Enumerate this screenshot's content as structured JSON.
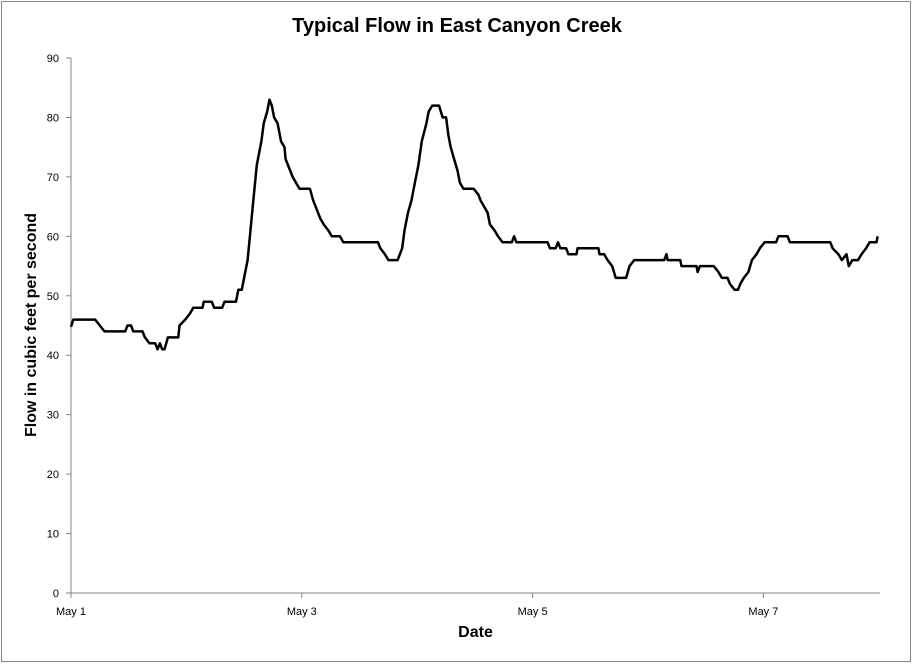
{
  "chart_data": {
    "type": "line",
    "title": "Typical Flow in East Canyon Creek",
    "xlabel": "Date",
    "ylabel": "Flow in cubic feet per second",
    "ylim": [
      0,
      90
    ],
    "yticks": [
      0,
      10,
      20,
      30,
      40,
      50,
      60,
      70,
      80,
      90
    ],
    "xlim_days": [
      0,
      7.01
    ],
    "xticks": [
      {
        "day": 0,
        "label": "May 1"
      },
      {
        "day": 2,
        "label": "May 3"
      },
      {
        "day": 4,
        "label": "May 5"
      },
      {
        "day": 6,
        "label": "May 7"
      }
    ],
    "grid": false,
    "legend": "none",
    "line_color": "#000000",
    "x_unit": "days since May 1",
    "series": [
      {
        "name": "Flow",
        "points": [
          [
            0,
            44.8
          ],
          [
            0.02,
            46
          ],
          [
            0.21,
            46
          ],
          [
            0.25,
            45
          ],
          [
            0.29,
            44
          ],
          [
            0.47,
            44
          ],
          [
            0.49,
            45
          ],
          [
            0.52,
            45
          ],
          [
            0.54,
            44
          ],
          [
            0.62,
            44
          ],
          [
            0.64,
            43
          ],
          [
            0.68,
            42
          ],
          [
            0.73,
            42
          ],
          [
            0.75,
            41
          ],
          [
            0.77,
            42
          ],
          [
            0.79,
            41
          ],
          [
            0.81,
            41
          ],
          [
            0.84,
            43
          ],
          [
            0.93,
            43
          ],
          [
            0.94,
            45
          ],
          [
            0.99,
            46
          ],
          [
            1.03,
            47
          ],
          [
            1.06,
            48
          ],
          [
            1.14,
            48
          ],
          [
            1.15,
            49
          ],
          [
            1.22,
            49
          ],
          [
            1.24,
            48
          ],
          [
            1.31,
            48
          ],
          [
            1.33,
            49
          ],
          [
            1.43,
            49
          ],
          [
            1.45,
            51
          ],
          [
            1.48,
            51
          ],
          [
            1.5,
            53
          ],
          [
            1.53,
            56
          ],
          [
            1.55,
            60
          ],
          [
            1.58,
            66
          ],
          [
            1.61,
            72
          ],
          [
            1.65,
            76
          ],
          [
            1.67,
            79
          ],
          [
            1.7,
            81
          ],
          [
            1.72,
            83
          ],
          [
            1.74,
            82
          ],
          [
            1.76,
            80
          ],
          [
            1.79,
            79
          ],
          [
            1.82,
            76
          ],
          [
            1.85,
            75
          ],
          [
            1.86,
            73
          ],
          [
            1.9,
            71
          ],
          [
            1.92,
            70
          ],
          [
            1.95,
            69
          ],
          [
            1.98,
            68
          ],
          [
            2.07,
            68
          ],
          [
            2.1,
            66
          ],
          [
            2.12,
            65
          ],
          [
            2.16,
            63
          ],
          [
            2.19,
            62
          ],
          [
            2.23,
            61
          ],
          [
            2.26,
            60
          ],
          [
            2.33,
            60
          ],
          [
            2.36,
            59
          ],
          [
            2.66,
            59
          ],
          [
            2.68,
            58
          ],
          [
            2.72,
            57
          ],
          [
            2.75,
            56
          ],
          [
            2.83,
            56
          ],
          [
            2.87,
            58
          ],
          [
            2.89,
            61
          ],
          [
            2.92,
            64
          ],
          [
            2.95,
            66
          ],
          [
            2.97,
            68
          ],
          [
            3.01,
            72
          ],
          [
            3.04,
            76
          ],
          [
            3.08,
            79
          ],
          [
            3.1,
            81
          ],
          [
            3.13,
            82
          ],
          [
            3.19,
            82
          ],
          [
            3.22,
            80
          ],
          [
            3.25,
            80
          ],
          [
            3.27,
            77
          ],
          [
            3.29,
            75
          ],
          [
            3.32,
            73
          ],
          [
            3.35,
            71
          ],
          [
            3.37,
            69
          ],
          [
            3.4,
            68
          ],
          [
            3.49,
            68
          ],
          [
            3.53,
            67
          ],
          [
            3.55,
            66
          ],
          [
            3.58,
            65
          ],
          [
            3.61,
            64
          ],
          [
            3.63,
            62
          ],
          [
            3.67,
            61
          ],
          [
            3.7,
            60
          ],
          [
            3.74,
            59
          ],
          [
            3.82,
            59
          ],
          [
            3.84,
            60
          ],
          [
            3.86,
            59
          ],
          [
            4.13,
            59
          ],
          [
            4.15,
            58
          ],
          [
            4.2,
            58
          ],
          [
            4.22,
            59
          ],
          [
            4.24,
            58
          ],
          [
            4.29,
            58
          ],
          [
            4.31,
            57
          ],
          [
            4.38,
            57
          ],
          [
            4.39,
            58
          ],
          [
            4.57,
            58
          ],
          [
            4.58,
            57
          ],
          [
            4.62,
            57
          ],
          [
            4.65,
            56
          ],
          [
            4.69,
            55
          ],
          [
            4.72,
            53
          ],
          [
            4.81,
            53
          ],
          [
            4.84,
            55
          ],
          [
            4.88,
            56
          ],
          [
            5.14,
            56
          ],
          [
            5.16,
            57
          ],
          [
            5.17,
            56
          ],
          [
            5.28,
            56
          ],
          [
            5.29,
            55
          ],
          [
            5.42,
            55
          ],
          [
            5.43,
            54
          ],
          [
            5.45,
            55
          ],
          [
            5.57,
            55
          ],
          [
            5.61,
            54
          ],
          [
            5.64,
            53
          ],
          [
            5.69,
            53
          ],
          [
            5.71,
            52
          ],
          [
            5.75,
            51
          ],
          [
            5.78,
            51
          ],
          [
            5.8,
            52
          ],
          [
            5.83,
            53
          ],
          [
            5.87,
            54
          ],
          [
            5.9,
            56
          ],
          [
            5.94,
            57
          ],
          [
            5.97,
            58
          ],
          [
            6.01,
            59
          ],
          [
            6.11,
            59
          ],
          [
            6.13,
            60
          ],
          [
            6.21,
            60
          ],
          [
            6.23,
            59
          ],
          [
            6.58,
            59
          ],
          [
            6.6,
            58
          ],
          [
            6.65,
            57
          ],
          [
            6.68,
            56
          ],
          [
            6.72,
            57
          ],
          [
            6.74,
            55
          ],
          [
            6.77,
            56
          ],
          [
            6.82,
            56
          ],
          [
            6.85,
            57
          ],
          [
            6.89,
            58
          ],
          [
            6.92,
            59
          ],
          [
            6.98,
            59
          ],
          [
            6.99,
            60
          ]
        ]
      }
    ]
  }
}
